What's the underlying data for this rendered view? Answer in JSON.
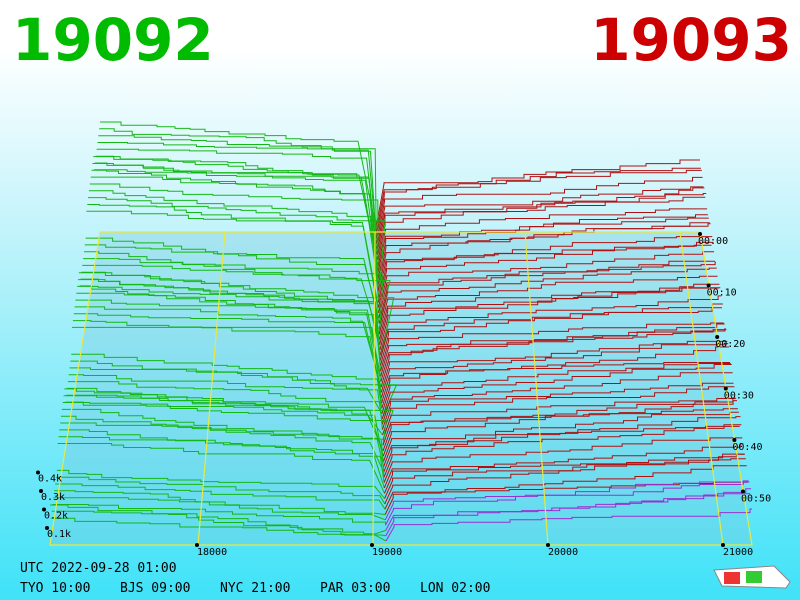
{
  "header": {
    "bid": "19092",
    "ask": "19093"
  },
  "price_axis": [
    "18000",
    "19000",
    "20000",
    "21000"
  ],
  "depth_axis": [
    "0.1k",
    "0.2k",
    "0.3k",
    "0.4k"
  ],
  "time_axis": [
    "00:00",
    "00:10",
    "00:20",
    "00:30",
    "00:40",
    "00:50"
  ],
  "clock": {
    "utc": "UTC 2022-09-28 01:00",
    "zones": [
      "TYO 10:00",
      "BJS 09:00",
      "NYC 21:00",
      "PAR 03:00",
      "LON 02:00"
    ]
  }
}
